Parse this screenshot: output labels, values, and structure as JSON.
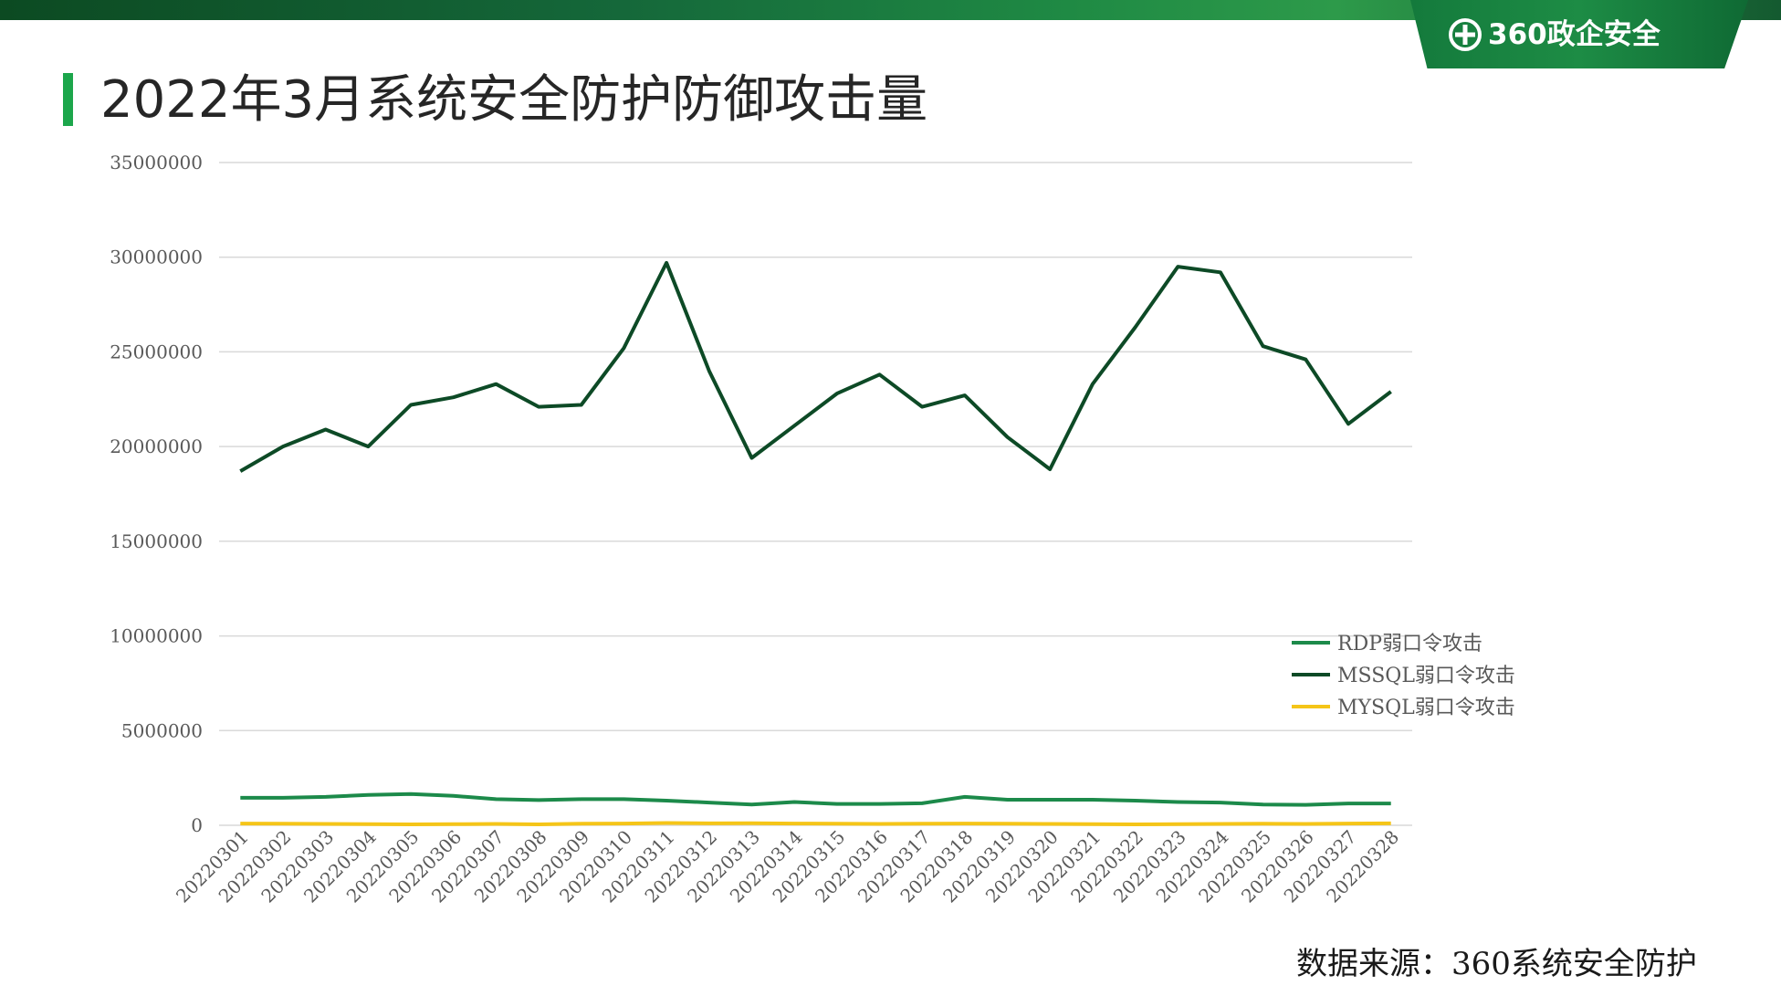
{
  "header": {
    "brand": "360政企安全",
    "title": "2022年3月系统安全防护防御攻击量"
  },
  "footer": {
    "source": "数据来源：360系统安全防护"
  },
  "colors": {
    "brand_green": "#1d8c45",
    "title_accent": "#1ca64b",
    "rdp": "#1c8a4a",
    "mssql": "#0d4a26",
    "mysql": "#f5c518",
    "grid": "#d9d9d9"
  },
  "chart_data": {
    "type": "line",
    "title": "",
    "xlabel": "",
    "ylabel": "",
    "ylim": [
      0,
      35000000
    ],
    "y_ticks": [
      0,
      5000000,
      10000000,
      15000000,
      20000000,
      25000000,
      30000000,
      35000000
    ],
    "y_tick_labels": [
      "0",
      "5000000",
      "10000000",
      "15000000",
      "20000000",
      "25000000",
      "30000000",
      "35000000"
    ],
    "grid": true,
    "legend_position": "right",
    "categories": [
      "20220301",
      "20220302",
      "20220303",
      "20220304",
      "20220305",
      "20220306",
      "20220307",
      "20220308",
      "20220309",
      "20220310",
      "20220311",
      "20220312",
      "20220313",
      "20220314",
      "20220315",
      "20220316",
      "20220317",
      "20220318",
      "20220319",
      "20220320",
      "20220321",
      "20220322",
      "20220323",
      "20220324",
      "20220325",
      "20220326",
      "20220327",
      "20220328"
    ],
    "series": [
      {
        "name": "RDP弱口令攻击",
        "color": "#1c8a4a",
        "values": [
          1450000,
          1450000,
          1500000,
          1600000,
          1650000,
          1550000,
          1380000,
          1330000,
          1380000,
          1380000,
          1300000,
          1200000,
          1100000,
          1230000,
          1130000,
          1130000,
          1160000,
          1500000,
          1350000,
          1350000,
          1350000,
          1300000,
          1230000,
          1200000,
          1100000,
          1080000,
          1150000,
          1150000
        ]
      },
      {
        "name": "MSSQL弱口令攻击",
        "color": "#0d4a26",
        "values": [
          18700000,
          20000000,
          20900000,
          20000000,
          22200000,
          22600000,
          23300000,
          22100000,
          22200000,
          25200000,
          29700000,
          24000000,
          19400000,
          21100000,
          22800000,
          23800000,
          22100000,
          22700000,
          20500000,
          18800000,
          23300000,
          26300000,
          29500000,
          29200000,
          25300000,
          24600000,
          21200000,
          22900000
        ]
      },
      {
        "name": "MYSQL弱口令攻击",
        "color": "#f5c518",
        "values": [
          90000,
          80000,
          70000,
          60000,
          50000,
          60000,
          70000,
          50000,
          80000,
          90000,
          120000,
          100000,
          110000,
          90000,
          80000,
          70000,
          80000,
          90000,
          80000,
          70000,
          60000,
          50000,
          60000,
          70000,
          80000,
          70000,
          90000,
          100000
        ]
      }
    ]
  }
}
